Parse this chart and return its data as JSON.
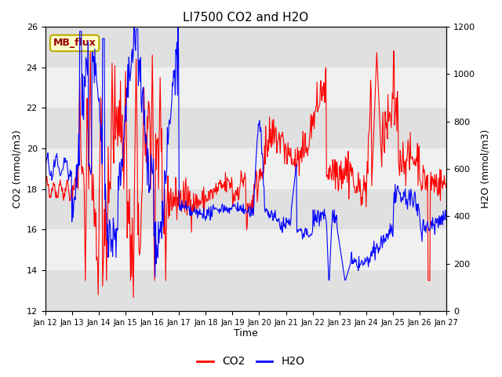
{
  "title": "LI7500 CO2 and H2O",
  "xlabel": "Time",
  "ylabel_left": "CO2 (mmol/m3)",
  "ylabel_right": "H2O (mmol/m3)",
  "ylim_left": [
    12,
    26
  ],
  "ylim_right": [
    0,
    1200
  ],
  "yticks_left": [
    12,
    14,
    16,
    18,
    20,
    22,
    24,
    26
  ],
  "yticks_right": [
    0,
    200,
    400,
    600,
    800,
    1000,
    1200
  ],
  "xticklabels": [
    "Jan 12",
    "Jan 13",
    "Jan 14",
    "Jan 15",
    "Jan 16",
    "Jan 17",
    "Jan 18",
    "Jan 19",
    "Jan 20",
    "Jan 21",
    "Jan 22",
    "Jan 23",
    "Jan 24",
    "Jan 25",
    "Jan 26",
    "Jan 27"
  ],
  "co2_color": "#FF0000",
  "h2o_color": "#0000FF",
  "background_color": "#FFFFFF",
  "plot_bg_color": "#F0F0F0",
  "band_color": "#E0E0E0",
  "legend_label_co2": "CO2",
  "legend_label_h2o": "H2O",
  "annotation_text": "MB_flux",
  "figsize": [
    6.4,
    4.8
  ],
  "dpi": 100
}
